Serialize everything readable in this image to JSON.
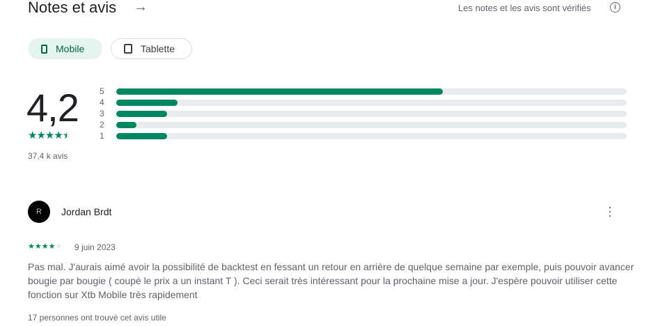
{
  "header": {
    "title": "Notes et avis",
    "verified": "Les notes et les avis sont vérifiés"
  },
  "chips": [
    {
      "label": "Mobile",
      "icon": "phone-icon",
      "selected": true
    },
    {
      "label": "Tablette",
      "icon": "tablet-icon",
      "selected": false
    }
  ],
  "rating": {
    "value": "4,2",
    "stars": 4.5,
    "count": "37,4 k avis"
  },
  "distribution": [
    {
      "label": "5",
      "fraction": 0.64
    },
    {
      "label": "4",
      "fraction": 0.12
    },
    {
      "label": "3",
      "fraction": 0.1
    },
    {
      "label": "2",
      "fraction": 0.04
    },
    {
      "label": "1",
      "fraction": 0.1
    }
  ],
  "review": {
    "author": "Jordan Brdt",
    "avatar_text": "R",
    "stars": 4,
    "date": "9 juin 2023",
    "text": "Pas mal. J'aurais aimé avoir la possibilité de backtest en fessant un retour en arrière de quelque semaine par exemple, puis pouvoir avancer bougie par bougie ( coupé le prix a un instant T ). Ceci serait très intéressant pour la prochaine mise a jour. J'espère pouvoir utiliser cette fonction sur Xtb Mobile très rapidement",
    "helpful": "17 personnes ont trouvé cet avis utile"
  },
  "colors": {
    "accent": "#01875f",
    "chip_bg": "#e6f4ef",
    "track": "#e8eaed"
  }
}
